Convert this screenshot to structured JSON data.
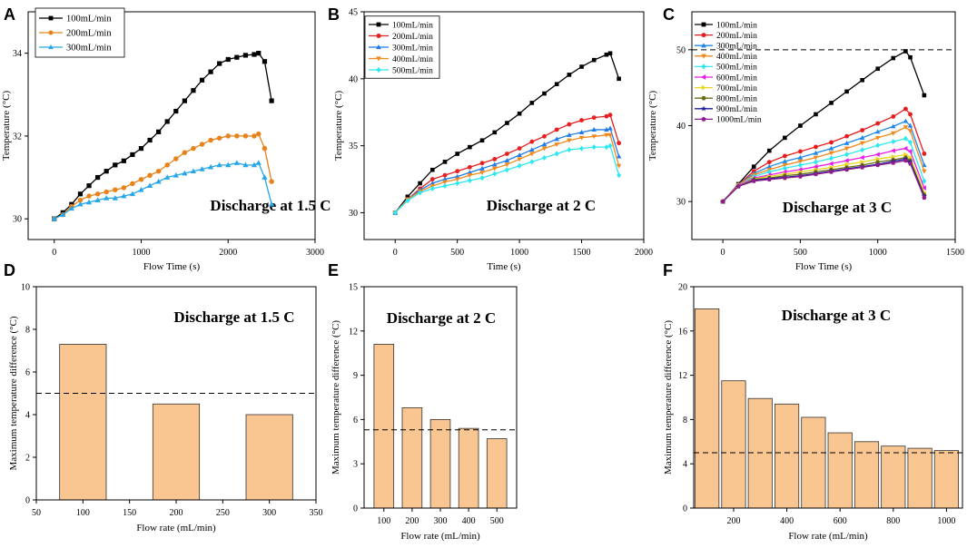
{
  "figure": {
    "colors": {
      "100mL/min": "#000000",
      "200mL/min": "#e8821a",
      "300mL/min": "#27a7e8",
      "bar_fill": "#f9c590",
      "bar_edge": "#333333"
    }
  },
  "chart_data": [
    {
      "panel": "A",
      "type": "line",
      "xlabel": "Flow Time (s)",
      "ylabel": "Temperature (°C)",
      "xlim": [
        -300,
        3000
      ],
      "ylim": [
        29.5,
        35.0
      ],
      "xticks": [
        0,
        1000,
        2000,
        3000
      ],
      "yticks": [
        30,
        32,
        34
      ],
      "annotation": "Discharge at 1.5 C",
      "series": [
        {
          "name": "100mL/min",
          "color": "#000000",
          "marker": "square",
          "x": [
            0,
            100,
            200,
            300,
            400,
            500,
            600,
            700,
            800,
            900,
            1000,
            1100,
            1200,
            1300,
            1400,
            1500,
            1600,
            1700,
            1800,
            1900,
            2000,
            2100,
            2200,
            2300,
            2350,
            2420,
            2500
          ],
          "y": [
            30.0,
            30.15,
            30.35,
            30.6,
            30.8,
            31.0,
            31.15,
            31.3,
            31.4,
            31.55,
            31.7,
            31.9,
            32.1,
            32.35,
            32.6,
            32.85,
            33.1,
            33.35,
            33.55,
            33.75,
            33.85,
            33.9,
            33.95,
            33.97,
            34.0,
            33.8,
            32.85
          ]
        },
        {
          "name": "200mL/min",
          "color": "#e8821a",
          "marker": "circle",
          "x": [
            0,
            100,
            200,
            300,
            400,
            500,
            600,
            700,
            800,
            900,
            1000,
            1100,
            1200,
            1300,
            1400,
            1500,
            1600,
            1700,
            1800,
            1900,
            2000,
            2100,
            2200,
            2300,
            2350,
            2420,
            2500
          ],
          "y": [
            30.0,
            30.1,
            30.3,
            30.45,
            30.55,
            30.6,
            30.65,
            30.7,
            30.75,
            30.85,
            30.95,
            31.05,
            31.15,
            31.3,
            31.45,
            31.6,
            31.7,
            31.8,
            31.9,
            31.95,
            32.0,
            32.0,
            32.0,
            32.0,
            32.05,
            31.7,
            30.9
          ]
        },
        {
          "name": "300mL/min",
          "color": "#27a7e8",
          "marker": "triangle",
          "x": [
            0,
            100,
            200,
            300,
            400,
            500,
            600,
            700,
            800,
            900,
            1000,
            1100,
            1200,
            1300,
            1400,
            1500,
            1600,
            1700,
            1800,
            1900,
            2000,
            2100,
            2200,
            2300,
            2350,
            2420,
            2500
          ],
          "y": [
            30.0,
            30.1,
            30.25,
            30.35,
            30.4,
            30.45,
            30.5,
            30.5,
            30.55,
            30.6,
            30.7,
            30.8,
            30.9,
            31.0,
            31.05,
            31.1,
            31.15,
            31.2,
            31.25,
            31.3,
            31.3,
            31.35,
            31.3,
            31.3,
            31.35,
            31.0,
            30.35
          ]
        }
      ]
    },
    {
      "panel": "B",
      "type": "line",
      "xlabel": "Time (s)",
      "ylabel": "Temperature (°C)",
      "xlim": [
        -250,
        2000
      ],
      "ylim": [
        28.0,
        45.0
      ],
      "xticks": [
        0,
        500,
        1000,
        1500,
        2000
      ],
      "yticks": [
        30,
        35,
        40,
        45
      ],
      "annotation": "Discharge at 2 C",
      "series": [
        {
          "name": "100mL/min",
          "color": "#000000",
          "marker": "square",
          "x": [
            0,
            100,
            200,
            300,
            400,
            500,
            600,
            700,
            800,
            900,
            1000,
            1100,
            1200,
            1300,
            1400,
            1500,
            1600,
            1700,
            1730,
            1800
          ],
          "y": [
            30.0,
            31.2,
            32.2,
            33.2,
            33.8,
            34.4,
            34.9,
            35.4,
            36.0,
            36.7,
            37.4,
            38.2,
            38.9,
            39.6,
            40.3,
            40.9,
            41.4,
            41.8,
            41.9,
            40.0
          ]
        },
        {
          "name": "200mL/min",
          "color": "#e62020",
          "marker": "circle",
          "x": [
            0,
            100,
            200,
            300,
            400,
            500,
            600,
            700,
            800,
            900,
            1000,
            1100,
            1200,
            1300,
            1400,
            1500,
            1600,
            1700,
            1730,
            1800
          ],
          "y": [
            30.0,
            31.0,
            31.8,
            32.5,
            32.8,
            33.1,
            33.4,
            33.7,
            34.0,
            34.4,
            34.8,
            35.3,
            35.7,
            36.2,
            36.6,
            36.9,
            37.1,
            37.2,
            37.3,
            35.2
          ]
        },
        {
          "name": "300mL/min",
          "color": "#1e7be8",
          "marker": "triangle",
          "x": [
            0,
            100,
            200,
            300,
            400,
            500,
            600,
            700,
            800,
            900,
            1000,
            1100,
            1200,
            1300,
            1400,
            1500,
            1600,
            1700,
            1730,
            1800
          ],
          "y": [
            30.0,
            31.0,
            31.7,
            32.2,
            32.5,
            32.7,
            33.0,
            33.3,
            33.6,
            33.9,
            34.3,
            34.7,
            35.1,
            35.5,
            35.8,
            36.0,
            36.2,
            36.2,
            36.3,
            34.2
          ]
        },
        {
          "name": "400mL/min",
          "color": "#f08a1c",
          "marker": "triangle-down",
          "x": [
            0,
            100,
            200,
            300,
            400,
            500,
            600,
            700,
            800,
            900,
            1000,
            1100,
            1200,
            1300,
            1400,
            1500,
            1600,
            1700,
            1730,
            1800
          ],
          "y": [
            30.0,
            31.0,
            31.6,
            32.0,
            32.3,
            32.5,
            32.8,
            33.0,
            33.3,
            33.6,
            34.0,
            34.4,
            34.8,
            35.1,
            35.4,
            35.6,
            35.7,
            35.8,
            35.8,
            33.5
          ]
        },
        {
          "name": "500mL/min",
          "color": "#2ee8f0",
          "marker": "diamond",
          "x": [
            0,
            100,
            200,
            300,
            400,
            500,
            600,
            700,
            800,
            900,
            1000,
            1100,
            1200,
            1300,
            1400,
            1500,
            1600,
            1700,
            1730,
            1800
          ],
          "y": [
            30.0,
            30.9,
            31.5,
            31.8,
            32.0,
            32.2,
            32.4,
            32.6,
            32.9,
            33.2,
            33.5,
            33.8,
            34.1,
            34.4,
            34.7,
            34.8,
            34.9,
            34.9,
            35.0,
            32.8
          ]
        }
      ]
    },
    {
      "panel": "C",
      "type": "line",
      "xlabel": "Flow Time (s)",
      "ylabel": "Temperature (°C)",
      "xlim": [
        -200,
        1500
      ],
      "ylim": [
        25.0,
        55.0
      ],
      "xticks": [
        0,
        500,
        1000,
        1500
      ],
      "yticks": [
        30,
        40,
        50
      ],
      "reference_line": 50,
      "annotation": "Discharge at 3 C",
      "series": [
        {
          "name": "100mL/min",
          "color": "#000000",
          "marker": "square",
          "x": [
            0,
            100,
            200,
            300,
            400,
            500,
            600,
            700,
            800,
            900,
            1000,
            1100,
            1180,
            1210,
            1300
          ],
          "y": [
            30.0,
            32.3,
            34.6,
            36.7,
            38.4,
            40.0,
            41.5,
            43.0,
            44.5,
            46.0,
            47.5,
            48.9,
            49.8,
            49.0,
            44.0
          ]
        },
        {
          "name": "200mL/min",
          "color": "#e81c1c",
          "marker": "circle",
          "x": [
            0,
            100,
            200,
            300,
            400,
            500,
            600,
            700,
            800,
            900,
            1000,
            1100,
            1180,
            1210,
            1300
          ],
          "y": [
            30.0,
            32.2,
            34.0,
            35.2,
            36.0,
            36.6,
            37.2,
            37.8,
            38.6,
            39.4,
            40.3,
            41.2,
            42.2,
            41.5,
            36.3
          ]
        },
        {
          "name": "300mL/min",
          "color": "#1e88e8",
          "marker": "triangle",
          "x": [
            0,
            100,
            200,
            300,
            400,
            500,
            600,
            700,
            800,
            900,
            1000,
            1100,
            1180,
            1210,
            1300
          ],
          "y": [
            30.0,
            32.2,
            33.7,
            34.6,
            35.3,
            35.8,
            36.4,
            37.0,
            37.7,
            38.4,
            39.2,
            39.9,
            40.6,
            40.0,
            34.8
          ]
        },
        {
          "name": "400mL/min",
          "color": "#f08a1c",
          "marker": "triangle-down",
          "x": [
            0,
            100,
            200,
            300,
            400,
            500,
            600,
            700,
            800,
            900,
            1000,
            1100,
            1180,
            1210,
            1300
          ],
          "y": [
            30.0,
            32.2,
            33.5,
            34.2,
            34.8,
            35.3,
            35.8,
            36.4,
            37.0,
            37.7,
            38.4,
            39.0,
            39.8,
            39.3,
            34.0
          ]
        },
        {
          "name": "500mL/min",
          "color": "#2ee8f0",
          "marker": "diamond",
          "x": [
            0,
            100,
            200,
            300,
            400,
            500,
            600,
            700,
            800,
            900,
            1000,
            1100,
            1180,
            1210,
            1300
          ],
          "y": [
            30.0,
            32.1,
            33.3,
            33.9,
            34.4,
            34.8,
            35.2,
            35.7,
            36.2,
            36.8,
            37.4,
            37.9,
            38.3,
            37.8,
            32.7
          ]
        },
        {
          "name": "600mL/min",
          "color": "#e81ce8",
          "marker": "triangle-left",
          "x": [
            0,
            100,
            200,
            300,
            400,
            500,
            600,
            700,
            800,
            900,
            1000,
            1100,
            1180,
            1210,
            1300
          ],
          "y": [
            30.0,
            32.1,
            33.1,
            33.5,
            33.9,
            34.2,
            34.6,
            35.0,
            35.4,
            35.8,
            36.2,
            36.7,
            37.0,
            36.6,
            31.8
          ]
        },
        {
          "name": "700mL/min",
          "color": "#e8d81c",
          "marker": "triangle-right",
          "x": [
            0,
            100,
            200,
            300,
            400,
            500,
            600,
            700,
            800,
            900,
            1000,
            1100,
            1180,
            1210,
            1300
          ],
          "y": [
            30.0,
            32.0,
            33.0,
            33.3,
            33.6,
            33.9,
            34.2,
            34.5,
            34.9,
            35.2,
            35.6,
            35.9,
            36.2,
            35.8,
            31.2
          ]
        },
        {
          "name": "800mL/min",
          "color": "#6b6b12",
          "marker": "hexagon",
          "x": [
            0,
            100,
            200,
            300,
            400,
            500,
            600,
            700,
            800,
            900,
            1000,
            1100,
            1180,
            1210,
            1300
          ],
          "y": [
            30.0,
            32.0,
            32.9,
            33.1,
            33.4,
            33.6,
            33.9,
            34.2,
            34.5,
            34.8,
            35.2,
            35.5,
            35.8,
            35.4,
            30.9
          ]
        },
        {
          "name": "900mL/min",
          "color": "#1c1c9e",
          "marker": "star",
          "x": [
            0,
            100,
            200,
            300,
            400,
            500,
            600,
            700,
            800,
            900,
            1000,
            1100,
            1180,
            1210,
            1300
          ],
          "y": [
            30.0,
            32.0,
            32.8,
            33.0,
            33.2,
            33.4,
            33.7,
            34.0,
            34.3,
            34.6,
            34.9,
            35.3,
            35.6,
            35.2,
            30.7
          ]
        },
        {
          "name": "1000mL/min",
          "color": "#8e1c8e",
          "marker": "pentagon",
          "x": [
            0,
            100,
            200,
            300,
            400,
            500,
            600,
            700,
            800,
            900,
            1000,
            1100,
            1180,
            1210,
            1300
          ],
          "y": [
            30.0,
            32.0,
            32.7,
            32.9,
            33.1,
            33.3,
            33.6,
            33.9,
            34.2,
            34.5,
            34.8,
            35.1,
            35.4,
            35.0,
            30.5
          ]
        }
      ]
    },
    {
      "panel": "D",
      "type": "bar",
      "xlabel": "Flow rate (mL/min)",
      "ylabel": "Maximum temperature difference (°C)",
      "xlim": [
        50,
        350
      ],
      "ylim": [
        0,
        10
      ],
      "xticks": [
        50,
        100,
        150,
        200,
        250,
        300,
        350
      ],
      "yticks": [
        0,
        2,
        4,
        6,
        8,
        10
      ],
      "bar_width": 50,
      "categories": [
        100,
        200,
        300
      ],
      "values": [
        7.3,
        4.5,
        4.0
      ],
      "reference_line": 5.0,
      "annotation": "Discharge at 1.5 C"
    },
    {
      "panel": "E",
      "type": "bar",
      "xlabel": "Flow rate (mL/min)",
      "ylabel": "Maximum temperature difference (°C)",
      "xlim": [
        30,
        570
      ],
      "ylim": [
        0,
        15
      ],
      "xticks": [
        100,
        200,
        300,
        400,
        500
      ],
      "yticks": [
        0,
        3,
        6,
        9,
        12,
        15
      ],
      "bar_width": 70,
      "categories": [
        100,
        200,
        300,
        400,
        500
      ],
      "values": [
        11.1,
        6.8,
        6.0,
        5.4,
        4.7
      ],
      "reference_line": 5.3,
      "annotation": "Discharge at 2 C"
    },
    {
      "panel": "F",
      "type": "bar",
      "xlabel": "Flow rate (mL/min)",
      "ylabel": "Maximum temperature difference (°C)",
      "xlim": [
        50,
        1060
      ],
      "ylim": [
        0,
        20
      ],
      "xticks": [
        200,
        400,
        600,
        800,
        1000
      ],
      "yticks": [
        0,
        4,
        8,
        12,
        16,
        20
      ],
      "bar_width": 90,
      "categories": [
        100,
        200,
        300,
        400,
        500,
        600,
        700,
        800,
        900,
        1000
      ],
      "values": [
        18.0,
        11.5,
        9.9,
        9.4,
        8.2,
        6.8,
        6.0,
        5.6,
        5.4,
        5.2
      ],
      "reference_line": 5.0,
      "annotation": "Discharge at 3 C"
    }
  ]
}
